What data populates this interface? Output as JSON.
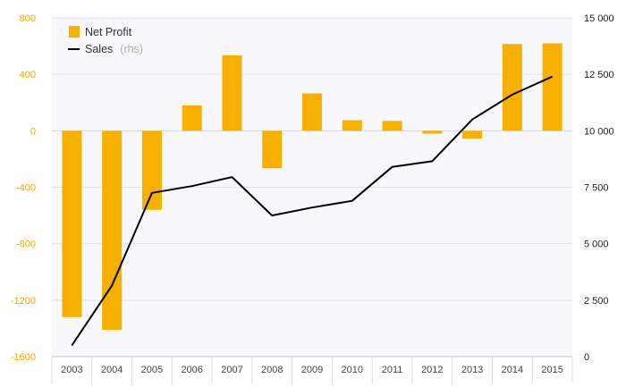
{
  "chart_data": {
    "type": "bar",
    "categories": [
      "2003",
      "2004",
      "2005",
      "2006",
      "2007",
      "2008",
      "2009",
      "2010",
      "2011",
      "2012",
      "2013",
      "2014",
      "2015"
    ],
    "series": [
      {
        "name": "Net Profit",
        "type": "bar",
        "axis": "left",
        "color": "#f7b000",
        "values": [
          -1320,
          -1410,
          -560,
          180,
          535,
          -265,
          265,
          75,
          70,
          -20,
          -55,
          615,
          620
        ]
      },
      {
        "name": "Sales",
        "axis_note": "(rhs)",
        "type": "line",
        "axis": "right",
        "color": "#000000",
        "values": [
          500,
          3150,
          7250,
          7550,
          7950,
          6250,
          6600,
          6900,
          8400,
          8650,
          10500,
          11600,
          12400
        ]
      }
    ],
    "y_left": {
      "ticks": [
        800,
        400,
        0,
        -400,
        -800,
        -1200,
        -1600
      ],
      "tick_labels": [
        "800",
        "400",
        "0",
        "-400",
        "-800",
        "-1200",
        "-1600"
      ],
      "ylim": [
        -1600,
        800
      ]
    },
    "y_right": {
      "ticks": [
        15000,
        12500,
        10000,
        7500,
        5000,
        2500,
        0
      ],
      "tick_labels": [
        "15 000",
        "12 500",
        "10 000",
        "7 500",
        "5 000",
        "2 500",
        "0"
      ],
      "ylim": [
        0,
        15000
      ]
    },
    "grid": true,
    "legend_position": "top-left",
    "colors": {
      "bar": "#f7b000",
      "line": "#000000",
      "plot_background": "#f8f8fb",
      "gridline": "#e2e2e8",
      "left_axis_text": "#f0a800"
    }
  }
}
